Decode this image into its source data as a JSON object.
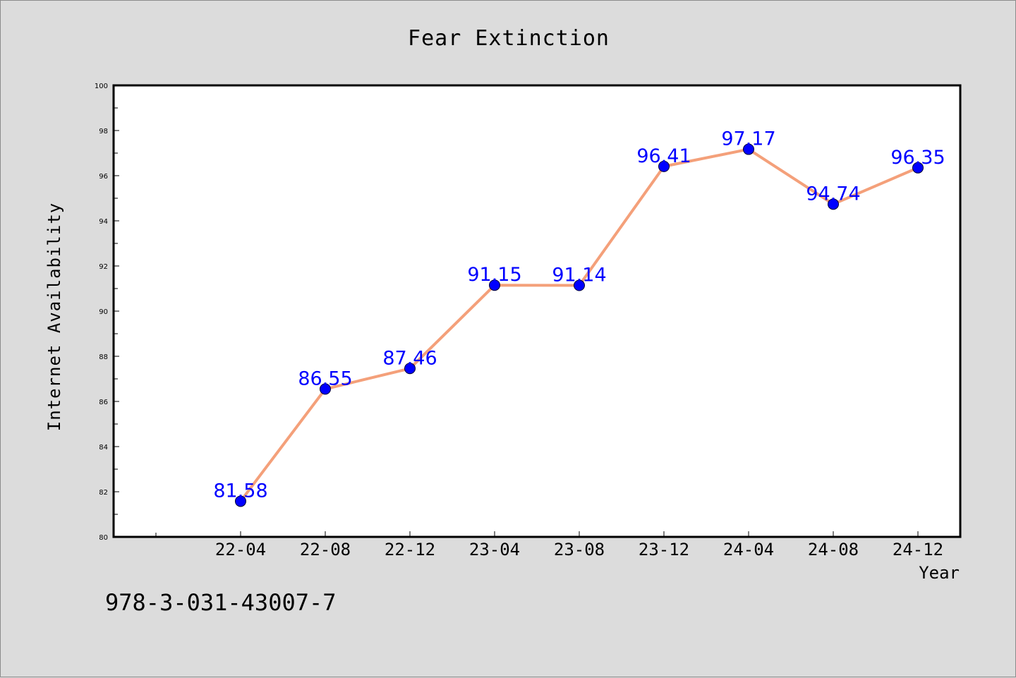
{
  "chart_data": {
    "type": "line",
    "title": "Fear Extinction",
    "xlabel": "Year",
    "ylabel": "Internet Availability",
    "categories": [
      "22-04",
      "22-08",
      "22-12",
      "23-04",
      "23-08",
      "23-12",
      "24-04",
      "24-08",
      "24-12"
    ],
    "values": [
      81.58,
      86.55,
      87.46,
      91.15,
      91.14,
      96.41,
      97.17,
      94.74,
      96.35
    ],
    "data_labels": [
      "81.58",
      "86.55",
      "87.46",
      "91.15",
      "91.14",
      "96.41",
      "97.17",
      "94.74",
      "96.35"
    ],
    "ylim": [
      80,
      100
    ],
    "y_ticks": [
      "80",
      "82",
      "84",
      "86",
      "88",
      "90",
      "92",
      "94",
      "96",
      "98",
      "100"
    ],
    "grid": false,
    "line_color": "#f4a07a",
    "marker_color": "#0000ff",
    "label_color": "#0000ff"
  },
  "footer": {
    "isbn": "978-3-031-43007-7"
  }
}
